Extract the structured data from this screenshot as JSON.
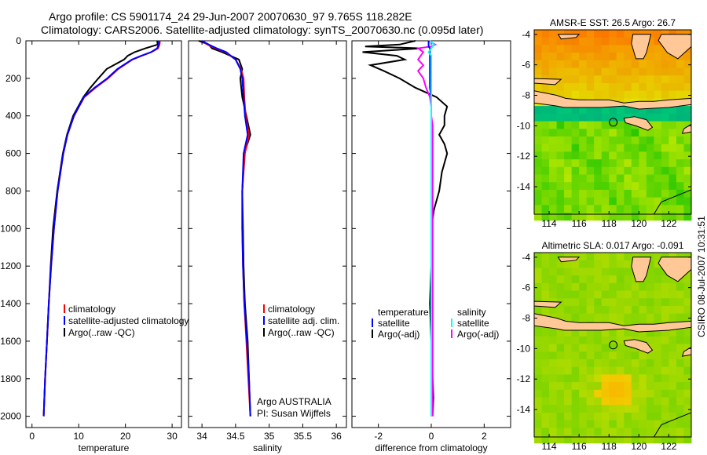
{
  "title": {
    "line1": "Argo profile: CS 5901174_24 29-Jun-2007 20070630_97 9.765S 118.282E",
    "line2": "Climatology: CARS2006. Satellite-adjusted climatology: synTS_20070630.nc (0.095d later)"
  },
  "footer_stamp": "CSIRO 08-Jul-2007 10:31:51",
  "colors": {
    "climatology": "#ff0000",
    "satellite": "#0000ff",
    "argo": "#000000",
    "sal_satellite": "#00ffff",
    "sal_argo": "#ff00ff"
  },
  "chart_data": [
    {
      "type": "line",
      "xlabel": "temperature",
      "ylabel": "",
      "xlim": [
        -1.3,
        32
      ],
      "ylim": [
        2060,
        0
      ],
      "xticks": [
        "0",
        "10",
        "20",
        "30"
      ],
      "xtick_values": [
        0,
        10,
        20,
        30
      ],
      "yticks": [
        "0",
        "200",
        "400",
        "600",
        "800",
        "1000",
        "1200",
        "1400",
        "1600",
        "1800",
        "2000"
      ],
      "ytick_values": [
        0,
        200,
        400,
        600,
        800,
        1000,
        1200,
        1400,
        1600,
        1800,
        2000
      ],
      "legend": [
        "climatology",
        "satellite-adjusted climatology",
        "Argo(..raw -QC)"
      ],
      "depth": [
        0,
        20,
        40,
        60,
        80,
        100,
        150,
        200,
        250,
        300,
        400,
        500,
        600,
        800,
        1000,
        1200,
        1400,
        1600,
        1800,
        2000
      ],
      "series": [
        {
          "name": "climatology",
          "color": "#ff0000",
          "values": [
            27.4,
            27.3,
            27.0,
            25.6,
            23.5,
            21.5,
            18.5,
            16.3,
            13.6,
            11.2,
            9.0,
            7.6,
            6.7,
            5.5,
            4.7,
            4.1,
            3.6,
            3.2,
            2.8,
            2.5
          ]
        },
        {
          "name": "satellite-adjusted climatology",
          "color": "#0000ff",
          "values": [
            27.2,
            27.1,
            26.8,
            25.5,
            23.4,
            21.4,
            18.3,
            16.1,
            13.4,
            11.1,
            9.0,
            7.6,
            6.7,
            5.5,
            4.7,
            4.1,
            3.6,
            3.2,
            2.8,
            2.5
          ]
        },
        {
          "name": "Argo(..raw -QC)",
          "color": "#000000",
          "values": [
            26.8,
            26.9,
            24.3,
            22.0,
            20.5,
            19.7,
            16.0,
            14.2,
            12.5,
            11.0,
            8.8,
            7.5,
            6.6,
            5.4,
            4.5,
            4.0,
            3.6,
            3.2,
            2.8,
            2.5
          ]
        }
      ]
    },
    {
      "type": "line",
      "xlabel": "salinity",
      "xlim": [
        33.8,
        36.15
      ],
      "ylim": [
        2060,
        0
      ],
      "xticks": [
        "34",
        "34.5",
        "35",
        "35.5",
        "36"
      ],
      "xtick_values": [
        34,
        34.5,
        35,
        35.5,
        36
      ],
      "legend": [
        "climatology",
        "satellite adj. clim.",
        "Argo(..raw -QC)"
      ],
      "annotation": [
        "Argo AUSTRALIA",
        "PI: Susan Wijffels"
      ],
      "depth": [
        0,
        20,
        40,
        60,
        100,
        150,
        200,
        300,
        400,
        500,
        600,
        800,
        1000,
        1200,
        1400,
        1600,
        1800,
        2000
      ],
      "series": [
        {
          "name": "climatology",
          "color": "#ff0000",
          "values": [
            34.0,
            34.08,
            34.2,
            34.35,
            34.5,
            34.58,
            34.62,
            34.63,
            34.65,
            34.7,
            34.64,
            34.6,
            34.6,
            34.61,
            34.63,
            34.66,
            34.69,
            34.72
          ]
        },
        {
          "name": "satellite adj. clim.",
          "color": "#0000ff",
          "values": [
            34.0,
            34.1,
            34.22,
            34.36,
            34.5,
            34.57,
            34.6,
            34.62,
            34.64,
            34.68,
            34.62,
            34.6,
            34.6,
            34.61,
            34.63,
            34.67,
            34.7,
            34.72
          ]
        },
        {
          "name": "Argo(..raw -QC)",
          "color": "#000000",
          "values": [
            33.95,
            34.1,
            34.15,
            34.3,
            34.55,
            34.6,
            34.57,
            34.6,
            34.66,
            34.72,
            34.63,
            34.6,
            34.61,
            34.62,
            34.64,
            34.68,
            34.7,
            34.72
          ]
        }
      ]
    },
    {
      "type": "line",
      "xlabel": "difference from climatology",
      "xlim": [
        -3,
        3
      ],
      "ylim": [
        2060,
        0
      ],
      "xticks": [
        "-2",
        "0",
        "2"
      ],
      "xtick_values": [
        -2,
        0,
        2
      ],
      "legend_headers": [
        "temperature",
        "salinity"
      ],
      "legend": [
        "satellite",
        "Argo(-adj)",
        "satellite",
        "Argo(-adj)"
      ],
      "depth": [
        0,
        20,
        30,
        40,
        60,
        80,
        100,
        130,
        160,
        200,
        250,
        300,
        350,
        400,
        450,
        500,
        550,
        600,
        700,
        800,
        900,
        1000,
        1200,
        1400,
        1600,
        1800,
        1900,
        2000
      ],
      "series": [
        {
          "name": "temperature satellite",
          "color": "#0000ff",
          "values": [
            -0.1,
            -0.1,
            -0.1,
            -0.05,
            -0.05,
            -0.05,
            -0.05,
            -0.05,
            -0.05,
            -0.05,
            -0.05,
            0,
            0,
            0,
            0,
            0,
            0,
            0,
            0,
            0,
            0,
            0,
            0,
            0,
            0,
            0,
            0,
            0
          ]
        },
        {
          "name": "temperature Argo(-adj)",
          "color": "#000000",
          "values": [
            -0.6,
            -1.2,
            -2.5,
            -0.4,
            -2.6,
            -1.3,
            -1.0,
            -2.3,
            -1.8,
            -1.2,
            -0.6,
            0.2,
            0.6,
            0.5,
            0.5,
            0.3,
            0.5,
            0.6,
            0.4,
            0.3,
            0.1,
            0,
            0,
            -0.05,
            0,
            0.05,
            0.08,
            0.05
          ]
        },
        {
          "name": "salinity satellite",
          "color": "#00ffff",
          "values": [
            -0.05,
            0.1,
            0.05,
            0,
            -0.1,
            0,
            0,
            0,
            0,
            0,
            0,
            0,
            0,
            0,
            0,
            0,
            0,
            0,
            0,
            0,
            0,
            0,
            0,
            0,
            0,
            0,
            0,
            0
          ]
        },
        {
          "name": "salinity Argo(-adj)",
          "color": "#ff00ff",
          "values": [
            -0.1,
            0.15,
            0.0,
            -0.5,
            -0.3,
            -0.4,
            -0.5,
            -0.3,
            -0.5,
            -0.3,
            -0.2,
            -0.05,
            0,
            0,
            0.05,
            0.05,
            0.05,
            0.05,
            0.05,
            0.05,
            0.05,
            0.05,
            0.05,
            0.05,
            0.05,
            0.05,
            0.05,
            0.05
          ]
        }
      ]
    }
  ],
  "maps": [
    {
      "title": "AMSR-E SST: 26.5 Argo: 26.7",
      "xticks": [
        "114",
        "116",
        "118",
        "120",
        "122"
      ],
      "yticks": [
        "-4",
        "-6",
        "-8",
        "-10",
        "-12",
        "-14"
      ],
      "marker": {
        "lon": 118.282,
        "lat": -9.765
      }
    },
    {
      "title": "Altimetric SLA: 0.017 Argo: -0.091",
      "xticks": [
        "114",
        "116",
        "118",
        "120",
        "122"
      ],
      "yticks": [
        "-4",
        "-6",
        "-8",
        "-10",
        "-12",
        "-14"
      ],
      "marker": {
        "lon": 118.282,
        "lat": -9.765
      }
    }
  ]
}
